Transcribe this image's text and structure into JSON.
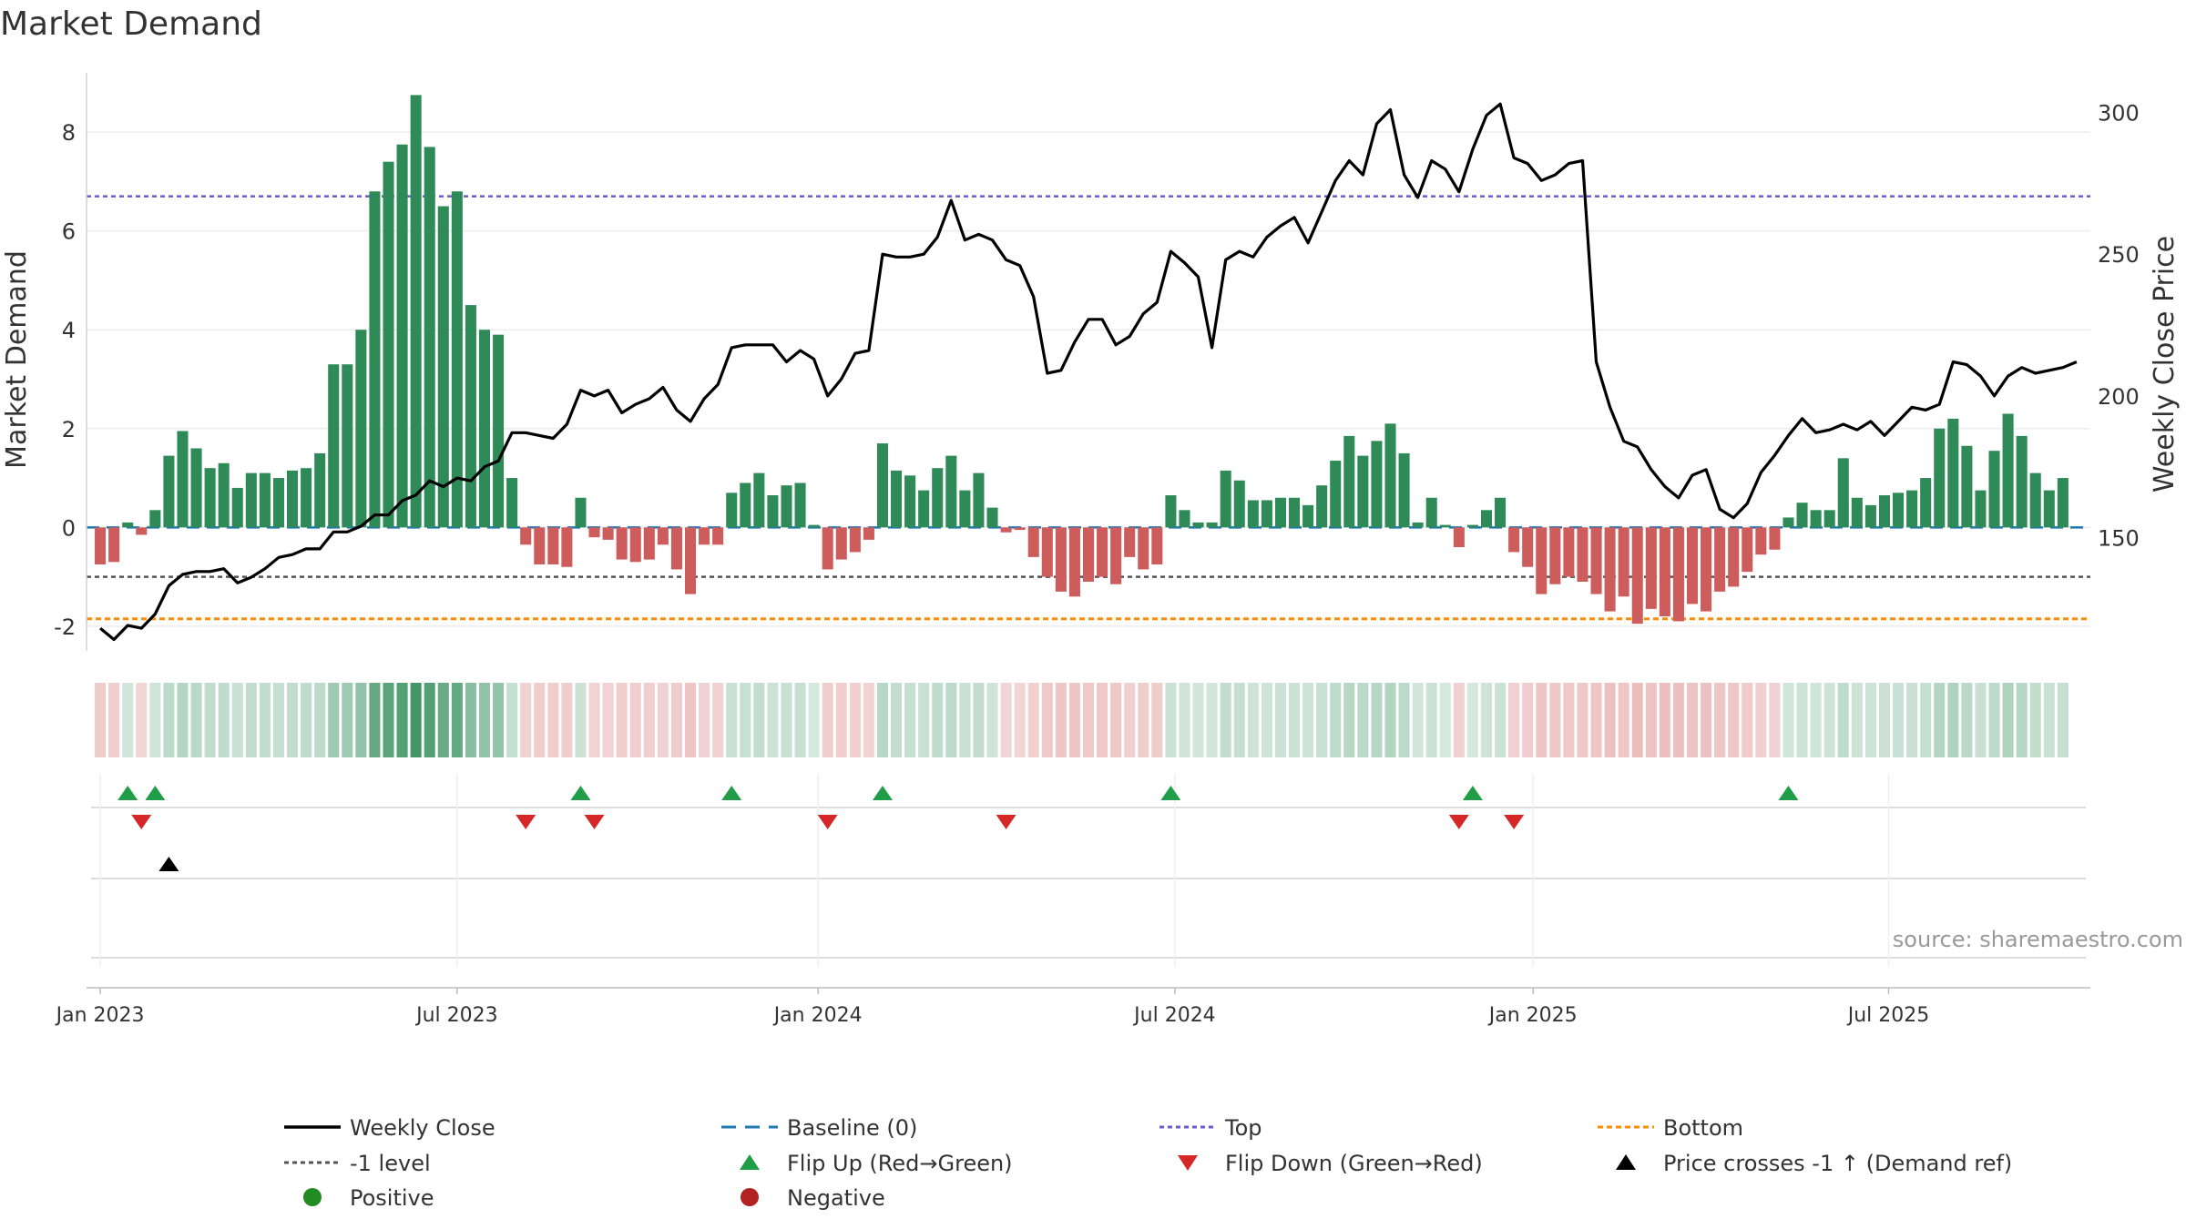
{
  "chart_data": {
    "type": "bar",
    "title": "Market Demand",
    "ylabel_left": "Market Demand",
    "ylabel_right": "Weekly Close Price",
    "left_axis": {
      "range": [
        -2.5,
        9.2
      ],
      "ticks": [
        -2,
        0,
        2,
        4,
        6,
        8
      ]
    },
    "right_axis": {
      "range": [
        110,
        314
      ],
      "ticks": [
        150,
        200,
        250,
        300
      ]
    },
    "x_range_weeks": [
      -1,
      145
    ],
    "x_ticks": [
      {
        "label": "Jan 2023",
        "week": 0
      },
      {
        "label": "Jul 2023",
        "week": 26
      },
      {
        "label": "Jan 2024",
        "week": 52.3
      },
      {
        "label": "Jul 2024",
        "week": 78.3
      },
      {
        "label": "Jan 2025",
        "week": 104.4
      },
      {
        "label": "Jul 2025",
        "week": 130.3
      }
    ],
    "reference_lines": {
      "baseline": 0,
      "minus_one": -1,
      "top": 6.7,
      "bottom": -1.85
    },
    "demand": [
      -0.75,
      -0.7,
      0.1,
      -0.15,
      0.35,
      1.45,
      1.95,
      1.6,
      1.2,
      1.3,
      0.8,
      1.1,
      1.1,
      1.0,
      1.15,
      1.2,
      1.5,
      3.3,
      3.3,
      4.0,
      6.8,
      7.4,
      7.75,
      8.75,
      7.7,
      6.5,
      6.8,
      4.5,
      4.0,
      3.9,
      1.0,
      -0.35,
      -0.75,
      -0.75,
      -0.8,
      0.6,
      -0.2,
      -0.25,
      -0.65,
      -0.7,
      -0.65,
      -0.35,
      -0.85,
      -1.35,
      -0.35,
      -0.35,
      0.7,
      0.9,
      1.1,
      0.65,
      0.85,
      0.9,
      0.05,
      -0.85,
      -0.65,
      -0.5,
      -0.25,
      1.7,
      1.15,
      1.05,
      0.75,
      1.2,
      1.45,
      0.75,
      1.1,
      0.4,
      -0.1,
      -0.05,
      -0.6,
      -1.0,
      -1.3,
      -1.4,
      -1.1,
      -1.0,
      -1.15,
      -0.6,
      -0.85,
      -0.75,
      0.65,
      0.35,
      0.1,
      0.1,
      1.15,
      0.95,
      0.55,
      0.55,
      0.6,
      0.6,
      0.45,
      0.85,
      1.35,
      1.85,
      1.45,
      1.75,
      2.1,
      1.5,
      0.1,
      0.6,
      0.05,
      -0.4,
      0.05,
      0.35,
      0.6,
      -0.5,
      -0.8,
      -1.35,
      -1.15,
      -1.0,
      -1.1,
      -1.35,
      -1.7,
      -1.4,
      -1.95,
      -1.65,
      -1.8,
      -1.9,
      -1.55,
      -1.7,
      -1.3,
      -1.2,
      -0.9,
      -0.55,
      -0.45,
      0.2,
      0.5,
      0.35,
      0.35,
      1.4,
      0.6,
      0.45,
      0.65,
      0.7,
      0.75,
      1.0,
      2.0,
      2.2,
      1.65,
      0.75,
      1.55,
      2.3,
      1.85,
      1.1,
      0.75,
      1.0
    ],
    "weekly_close": [
      118,
      114,
      119,
      118,
      123,
      133,
      137,
      138,
      138,
      139,
      134,
      136,
      139,
      143,
      144,
      146,
      146,
      152,
      152,
      154,
      158,
      158,
      163,
      165,
      170,
      168,
      171,
      170,
      175,
      177,
      187,
      187,
      186,
      185,
      190,
      202,
      200,
      202,
      194,
      197,
      199,
      203,
      195,
      191,
      199,
      204,
      217,
      218,
      218,
      218,
      212,
      216,
      213,
      200,
      206,
      215,
      216,
      250,
      249,
      249,
      250,
      256,
      269,
      255,
      257,
      255,
      248,
      246,
      235,
      208,
      209,
      219,
      227,
      227,
      218,
      221,
      229,
      233,
      251,
      247,
      242,
      217,
      248,
      251,
      249,
      256,
      260,
      263,
      254,
      265,
      276,
      283,
      278,
      296,
      301,
      278,
      270,
      283,
      280,
      272,
      287,
      299,
      303,
      284,
      282,
      276,
      278,
      282,
      283,
      212,
      196,
      184,
      182,
      174,
      168,
      164,
      172,
      174,
      160,
      157,
      162,
      173,
      179,
      186,
      192,
      187,
      188,
      190,
      188,
      191,
      186,
      191,
      196,
      195,
      197,
      212,
      211,
      207,
      200,
      207,
      210,
      208,
      209,
      210,
      212
    ],
    "flip_up_weeks": [
      2,
      4,
      35,
      46,
      57,
      78,
      100,
      123
    ],
    "flip_down_weeks": [
      3,
      31,
      36,
      53,
      66,
      99,
      103
    ],
    "price_cross_weeks": [
      5
    ],
    "source_text": "source: sharemaestro.com",
    "legend": [
      {
        "key": "weekly_close",
        "label": "Weekly Close"
      },
      {
        "key": "baseline",
        "label": "Baseline (0)"
      },
      {
        "key": "top",
        "label": "Top"
      },
      {
        "key": "bottom",
        "label": "Bottom"
      },
      {
        "key": "minus_one",
        "label": "-1 level"
      },
      {
        "key": "flip_up",
        "label": "Flip Up (Red→Green)"
      },
      {
        "key": "flip_down",
        "label": "Flip Down (Green→Red)"
      },
      {
        "key": "price_cross",
        "label": "Price crosses -1 ↑ (Demand ref)"
      },
      {
        "key": "positive",
        "label": "Positive"
      },
      {
        "key": "negative",
        "label": "Negative"
      }
    ],
    "colors": {
      "positive": "#2e8b57",
      "negative": "#cd5c5c",
      "flip_up": "#1f9e47",
      "flip_down": "#d62728",
      "price_cross": "#000000",
      "legend_positive": "#228b22",
      "legend_negative": "#b22222",
      "baseline": "#1f77b4",
      "top": "#6a5acd",
      "bottom": "#ff8c00",
      "minus_one": "#555555",
      "close": "#000000"
    }
  }
}
